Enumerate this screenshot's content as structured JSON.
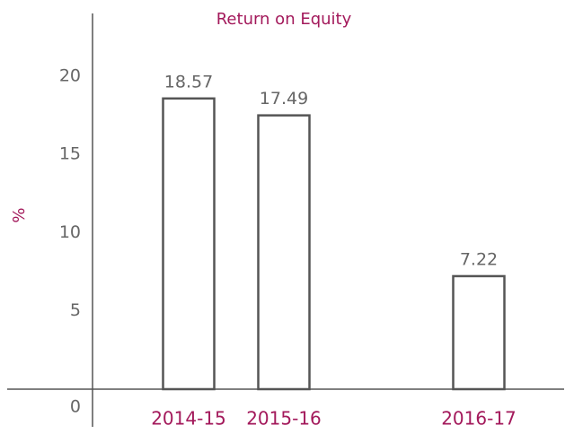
{
  "chart_data": {
    "type": "bar",
    "title": "Return on Equity",
    "ylabel": "%",
    "categories": [
      "2014-15",
      "2015-16",
      "2016-17"
    ],
    "values": [
      18.57,
      17.49,
      7.22
    ],
    "color": "#ffffff",
    "edgecolor": "#555555",
    "ylim": [
      0,
      24
    ],
    "yticks": [
      0,
      5,
      10,
      15,
      20
    ],
    "grid": false
  }
}
